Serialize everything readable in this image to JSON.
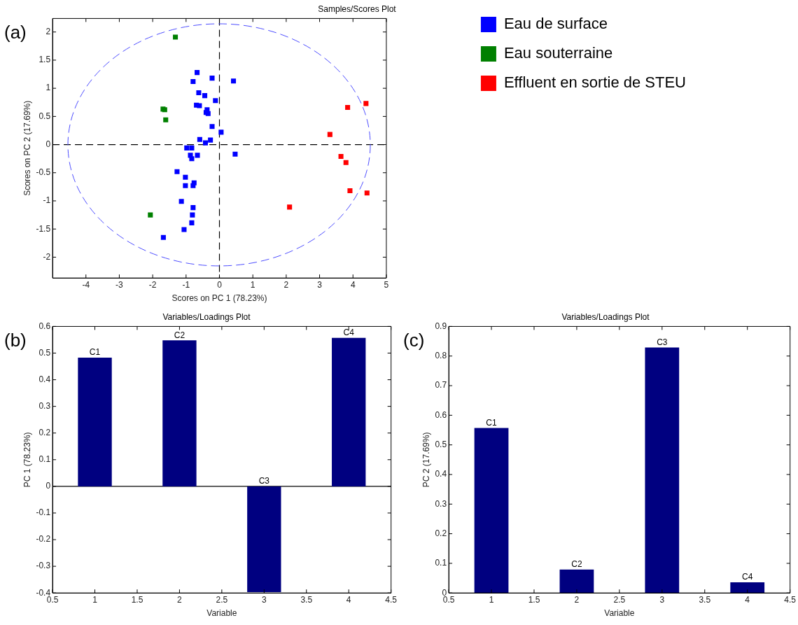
{
  "chart_data": [
    {
      "type": "scatter",
      "title": "Samples/Scores Plot",
      "xlabel": "Scores on PC 1 (78.23%)",
      "ylabel": "Scores on PC 2 (17.69%)",
      "annotations": [
        "(a)"
      ],
      "xlim": [
        -5,
        5
      ],
      "xticks": [
        -4,
        -3,
        -2,
        -1,
        0,
        1,
        2,
        3,
        4,
        5
      ],
      "ylim": [
        -2.37,
        2.24
      ],
      "yticks": [
        -2,
        -1.5,
        -1,
        -0.5,
        0,
        0.5,
        1,
        1.5,
        2
      ],
      "marker": "square",
      "legend": "right",
      "ref_lines": [
        {
          "axis": "x",
          "value": 0,
          "color": "#000000",
          "line_style": "dashed"
        },
        {
          "axis": "y",
          "value": 0,
          "color": "#000000",
          "line_style": "dashed"
        }
      ],
      "series": [
        {
          "name": "Eau de surface",
          "color": "#0000ff",
          "x": [
            -0.67,
            -0.22,
            -0.79,
            -0.62,
            -0.44,
            -0.12,
            -0.69,
            -0.6,
            -0.37,
            -0.34,
            -0.4,
            -0.22,
            0.05,
            -0.59,
            -0.27,
            -0.42,
            -0.98,
            -0.83,
            -0.87,
            -0.66,
            -0.83,
            -1.27,
            -1.02,
            -0.76,
            -1.02,
            -0.79,
            -1.14,
            -0.79,
            -0.81,
            -0.83,
            -1.06,
            -1.68,
            0.42,
            0.47
          ],
          "values": [
            1.28,
            1.18,
            1.12,
            0.92,
            0.87,
            0.78,
            0.7,
            0.69,
            0.62,
            0.55,
            0.57,
            0.32,
            0.22,
            0.09,
            0.08,
            0.03,
            -0.06,
            -0.06,
            -0.19,
            -0.19,
            -0.25,
            -0.48,
            -0.58,
            -0.68,
            -0.73,
            -0.73,
            -1.01,
            -1.12,
            -1.25,
            -1.39,
            -1.51,
            -1.65,
            1.13,
            -0.17
          ]
        },
        {
          "name": "Eau souterraine",
          "color": "#008000",
          "x": [
            -1.32,
            -1.69,
            -1.64,
            -1.61,
            -2.07
          ],
          "values": [
            1.91,
            0.63,
            0.62,
            0.44,
            -1.25
          ]
        },
        {
          "name": "Effluent en sortie de STEU",
          "color": "#ff0000",
          "x": [
            4.39,
            3.84,
            3.31,
            3.64,
            3.79,
            3.91,
            4.42,
            2.1
          ],
          "values": [
            0.73,
            0.66,
            0.18,
            -0.21,
            -0.32,
            -0.82,
            -0.86,
            -1.11
          ]
        }
      ]
    },
    {
      "type": "bar",
      "title": "Variables/Loadings Plot",
      "xlabel": "Variable",
      "ylabel": "PC 1 (78.23%)",
      "annotations": [
        "(b)"
      ],
      "x": [
        1,
        2,
        3,
        4
      ],
      "values": [
        0.483,
        0.548,
        -0.397,
        0.557
      ],
      "value_labels": [
        "C1",
        "C2",
        "C3",
        "C4"
      ],
      "color": "#000080",
      "xlim": [
        0.5,
        4.5
      ],
      "xticks": [
        0.5,
        1,
        1.5,
        2,
        2.5,
        3,
        3.5,
        4,
        4.5
      ],
      "ylim": [
        -0.4,
        0.6
      ],
      "yticks": [
        -0.4,
        -0.3,
        -0.2,
        -0.1,
        0,
        0.1,
        0.2,
        0.3,
        0.4,
        0.5,
        0.6
      ],
      "ref_lines": [
        {
          "axis": "y",
          "value": 0,
          "color": "#000000",
          "line_style": "solid"
        }
      ]
    },
    {
      "type": "bar",
      "title": "Variables/Loadings Plot",
      "xlabel": "Variable",
      "ylabel": "PC 2 (17.69%)",
      "annotations": [
        "(c)"
      ],
      "x": [
        1,
        2,
        3,
        4
      ],
      "values": [
        0.557,
        0.079,
        0.829,
        0.036
      ],
      "value_labels": [
        "C1",
        "C2",
        "C3",
        "C4"
      ],
      "color": "#000080",
      "xlim": [
        0.5,
        4.5
      ],
      "xticks": [
        0.5,
        1,
        1.5,
        2,
        2.5,
        3,
        3.5,
        4,
        4.5
      ],
      "ylim": [
        0,
        0.9
      ],
      "yticks": [
        0,
        0.1,
        0.2,
        0.3,
        0.4,
        0.5,
        0.6,
        0.7,
        0.8,
        0.9
      ]
    }
  ]
}
